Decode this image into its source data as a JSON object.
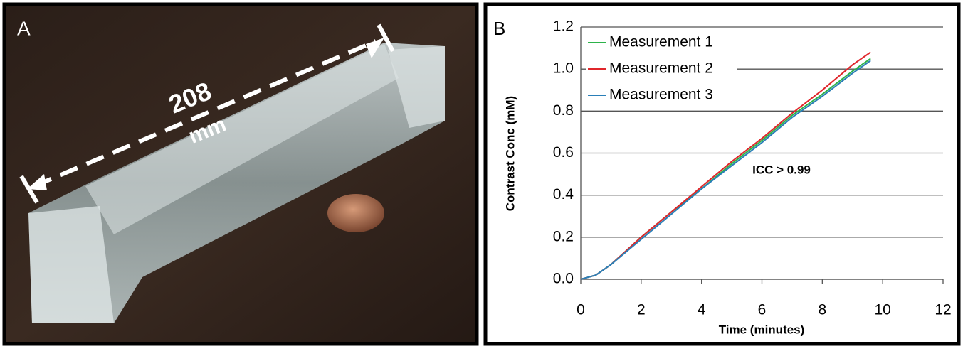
{
  "panel_a": {
    "label": "A",
    "dimension": "208",
    "unit": "mm"
  },
  "chart_data": {
    "type": "line",
    "panel_label": "B",
    "x_label": "Time (minutes)",
    "y_label": "Contrast Conc (mM)",
    "annotation": "ICC > 0.99",
    "x": [
      0,
      0.5,
      1,
      2,
      3,
      4,
      5,
      6,
      7,
      8,
      9,
      9.6
    ],
    "series": [
      {
        "name": "Measurement 1",
        "color": "#2db34a",
        "values": [
          0,
          0.02,
          0.07,
          0.2,
          0.32,
          0.43,
          0.55,
          0.66,
          0.78,
          0.88,
          0.99,
          1.05
        ]
      },
      {
        "name": "Measurement 2",
        "color": "#e0262b",
        "values": [
          0,
          0.02,
          0.07,
          0.2,
          0.32,
          0.44,
          0.56,
          0.67,
          0.79,
          0.9,
          1.02,
          1.08
        ]
      },
      {
        "name": "Measurement 3",
        "color": "#2a7fb8",
        "values": [
          0,
          0.02,
          0.07,
          0.19,
          0.31,
          0.43,
          0.54,
          0.65,
          0.77,
          0.87,
          0.98,
          1.04
        ]
      }
    ],
    "xlim": [
      0,
      12
    ],
    "xticks": [
      0,
      2,
      4,
      6,
      8,
      10,
      12
    ],
    "ylim": [
      0,
      1.2
    ],
    "yticks": [
      {
        "value": 0,
        "label": "0.0"
      },
      0.2,
      0.4,
      0.6,
      0.8,
      {
        "value": 1,
        "label": "1.0"
      },
      1.2
    ],
    "grid": true,
    "legend": "top-left"
  }
}
